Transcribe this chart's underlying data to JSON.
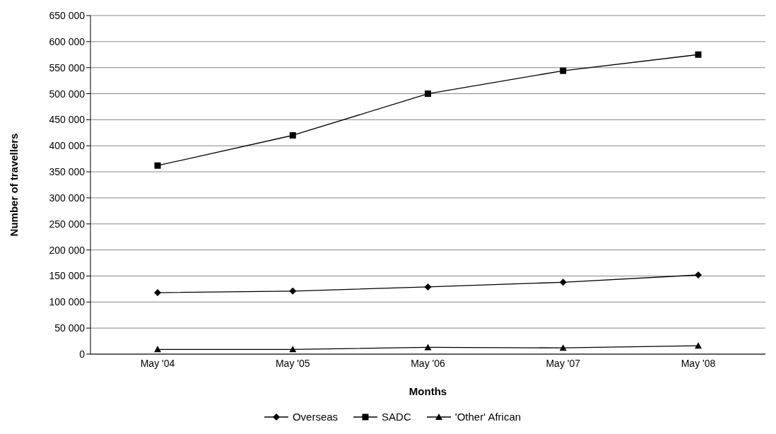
{
  "chart_data": {
    "type": "line",
    "xlabel": "Months",
    "ylabel": "Number of travellers",
    "categories": [
      "May '04",
      "May '05",
      "May '06",
      "May '07",
      "May '08"
    ],
    "series": [
      {
        "name": "Overseas",
        "color": "#000000",
        "marker": "diamond",
        "values": [
          118000,
          121000,
          129000,
          138000,
          152000
        ]
      },
      {
        "name": "SADC",
        "color": "#000000",
        "marker": "square",
        "values": [
          362000,
          420000,
          500000,
          544000,
          575000
        ]
      },
      {
        "name": "'Other' African",
        "color": "#000000",
        "marker": "triangle",
        "values": [
          9000,
          9000,
          13000,
          12000,
          16000
        ]
      }
    ],
    "ylim": [
      0,
      650000
    ],
    "yticks": [
      {
        "value": 0,
        "label": "0"
      },
      {
        "value": 50000,
        "label": "50 000"
      },
      {
        "value": 100000,
        "label": "100 000"
      },
      {
        "value": 150000,
        "label": "150 000"
      },
      {
        "value": 200000,
        "label": "200 000"
      },
      {
        "value": 250000,
        "label": "250 000"
      },
      {
        "value": 300000,
        "label": "300 000"
      },
      {
        "value": 350000,
        "label": "350 000"
      },
      {
        "value": 400000,
        "label": "400 000"
      },
      {
        "value": 450000,
        "label": "450 000"
      },
      {
        "value": 500000,
        "label": "500 000"
      },
      {
        "value": 550000,
        "label": "550 000"
      },
      {
        "value": 600000,
        "label": "600 000"
      },
      {
        "value": 650000,
        "label": "650 000"
      }
    ],
    "grid": "y",
    "legend": "bottom",
    "line_style": "solid"
  }
}
